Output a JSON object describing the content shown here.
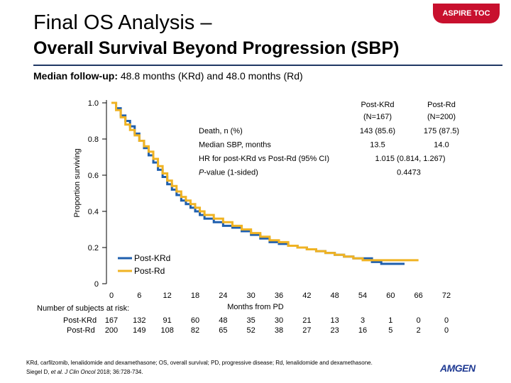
{
  "header": {
    "title_line1": "Final OS Analysis –",
    "title_line2": "Overall Survival Beyond Progression (SBP)",
    "toc_label": "ASPIRE TOC"
  },
  "followup": {
    "label": "Median follow-up:",
    "text": "48.8 months (KRd) and 48.0 months (Rd)"
  },
  "colors": {
    "krd": "#1f5fae",
    "rd": "#f0b323",
    "rule": "#1f3864",
    "toc": "#c8102e"
  },
  "chart_data": {
    "type": "line",
    "title": "Overall Survival Beyond Progression (SBP)",
    "xlabel": "Months from PD",
    "ylabel": "Proportion surviving",
    "xlim": [
      0,
      72
    ],
    "ylim": [
      0,
      1.0
    ],
    "x_ticks": [
      0,
      6,
      12,
      18,
      24,
      30,
      36,
      42,
      48,
      54,
      60,
      66,
      72
    ],
    "y_ticks": [
      {
        "value": 0,
        "label": "0"
      },
      {
        "value": 0.2,
        "label": "0.2"
      },
      {
        "value": 0.4,
        "label": "0.4"
      },
      {
        "value": 0.6,
        "label": "0.6"
      },
      {
        "value": 0.8,
        "label": "0.8"
      },
      {
        "value": 1.0,
        "label": "1.0"
      }
    ],
    "legend": {
      "position": "bottom-left"
    },
    "series": [
      {
        "name": "Post-KRd",
        "color": "#1f5fae",
        "points": [
          [
            0,
            1.0
          ],
          [
            1,
            0.97
          ],
          [
            2,
            0.93
          ],
          [
            3,
            0.9
          ],
          [
            4,
            0.87
          ],
          [
            5,
            0.83
          ],
          [
            6,
            0.79
          ],
          [
            7,
            0.75
          ],
          [
            8,
            0.71
          ],
          [
            9,
            0.67
          ],
          [
            10,
            0.63
          ],
          [
            11,
            0.59
          ],
          [
            12,
            0.55
          ],
          [
            13,
            0.52
          ],
          [
            14,
            0.49
          ],
          [
            15,
            0.46
          ],
          [
            16,
            0.44
          ],
          [
            17,
            0.42
          ],
          [
            18,
            0.4
          ],
          [
            19,
            0.38
          ],
          [
            20,
            0.36
          ],
          [
            22,
            0.34
          ],
          [
            24,
            0.32
          ],
          [
            26,
            0.31
          ],
          [
            28,
            0.29
          ],
          [
            30,
            0.27
          ],
          [
            32,
            0.25
          ],
          [
            34,
            0.23
          ],
          [
            36,
            0.22
          ],
          [
            38,
            0.21
          ],
          [
            40,
            0.2
          ],
          [
            42,
            0.19
          ],
          [
            44,
            0.18
          ],
          [
            46,
            0.17
          ],
          [
            48,
            0.16
          ],
          [
            50,
            0.15
          ],
          [
            52,
            0.14
          ],
          [
            54,
            0.14
          ],
          [
            56,
            0.12
          ],
          [
            58,
            0.11
          ],
          [
            60,
            0.11
          ],
          [
            63,
            0.11
          ]
        ]
      },
      {
        "name": "Post-Rd",
        "color": "#f0b323",
        "points": [
          [
            0,
            1.0
          ],
          [
            1,
            0.96
          ],
          [
            2,
            0.92
          ],
          [
            3,
            0.88
          ],
          [
            4,
            0.85
          ],
          [
            5,
            0.82
          ],
          [
            6,
            0.79
          ],
          [
            7,
            0.76
          ],
          [
            8,
            0.73
          ],
          [
            9,
            0.69
          ],
          [
            10,
            0.65
          ],
          [
            11,
            0.61
          ],
          [
            12,
            0.57
          ],
          [
            13,
            0.54
          ],
          [
            14,
            0.51
          ],
          [
            15,
            0.48
          ],
          [
            16,
            0.46
          ],
          [
            17,
            0.44
          ],
          [
            18,
            0.42
          ],
          [
            19,
            0.4
          ],
          [
            20,
            0.38
          ],
          [
            22,
            0.36
          ],
          [
            24,
            0.34
          ],
          [
            26,
            0.32
          ],
          [
            28,
            0.3
          ],
          [
            30,
            0.28
          ],
          [
            32,
            0.26
          ],
          [
            34,
            0.24
          ],
          [
            36,
            0.23
          ],
          [
            38,
            0.21
          ],
          [
            40,
            0.2
          ],
          [
            42,
            0.19
          ],
          [
            44,
            0.18
          ],
          [
            46,
            0.17
          ],
          [
            48,
            0.16
          ],
          [
            50,
            0.15
          ],
          [
            52,
            0.14
          ],
          [
            54,
            0.13
          ],
          [
            56,
            0.13
          ],
          [
            58,
            0.13
          ],
          [
            60,
            0.13
          ],
          [
            66,
            0.13
          ]
        ]
      }
    ],
    "stats_table": {
      "columns": [
        {
          "name": "Post-KRd",
          "n": "(N=167)"
        },
        {
          "name": "Post-Rd",
          "n": "(N=200)"
        }
      ],
      "rows": [
        {
          "label": "Death, n (%)",
          "italic_prefix": "",
          "values": [
            "143 (85.6)",
            "175 (87.5)"
          ]
        },
        {
          "label": "Median SBP, months",
          "italic_prefix": "",
          "values": [
            "13.5",
            "14.0"
          ]
        },
        {
          "label": "HR for post-KRd vs Post-Rd (95% CI)",
          "italic_prefix": "",
          "merged": "1.015 (0.814, 1.267)"
        },
        {
          "label": "-value (1-sided)",
          "italic_prefix": "P",
          "merged": "0.4473"
        }
      ]
    },
    "at_risk": {
      "title": "Number of subjects at risk:",
      "rows": [
        {
          "label": "Post-KRd",
          "values": [
            "167",
            "132",
            "91",
            "60",
            "48",
            "35",
            "30",
            "21",
            "13",
            "3",
            "1",
            "0",
            "0"
          ]
        },
        {
          "label": "Post-Rd",
          "values": [
            "200",
            "149",
            "108",
            "82",
            "65",
            "52",
            "38",
            "27",
            "23",
            "16",
            "5",
            "2",
            "0"
          ]
        }
      ]
    }
  },
  "footnote": {
    "line1": "KRd, carfilzomib, lenalidomide and dexamethasone; OS, overall survival; PD, progressive disease; Rd, lenalidomide and dexamethasone.",
    "line2_prefix": "Siegel D, ",
    "line2_italic": "et al. J Clin Oncol",
    "line2_suffix": " 2018; 36:728-734."
  },
  "logo": {
    "text": "AMGEN"
  }
}
